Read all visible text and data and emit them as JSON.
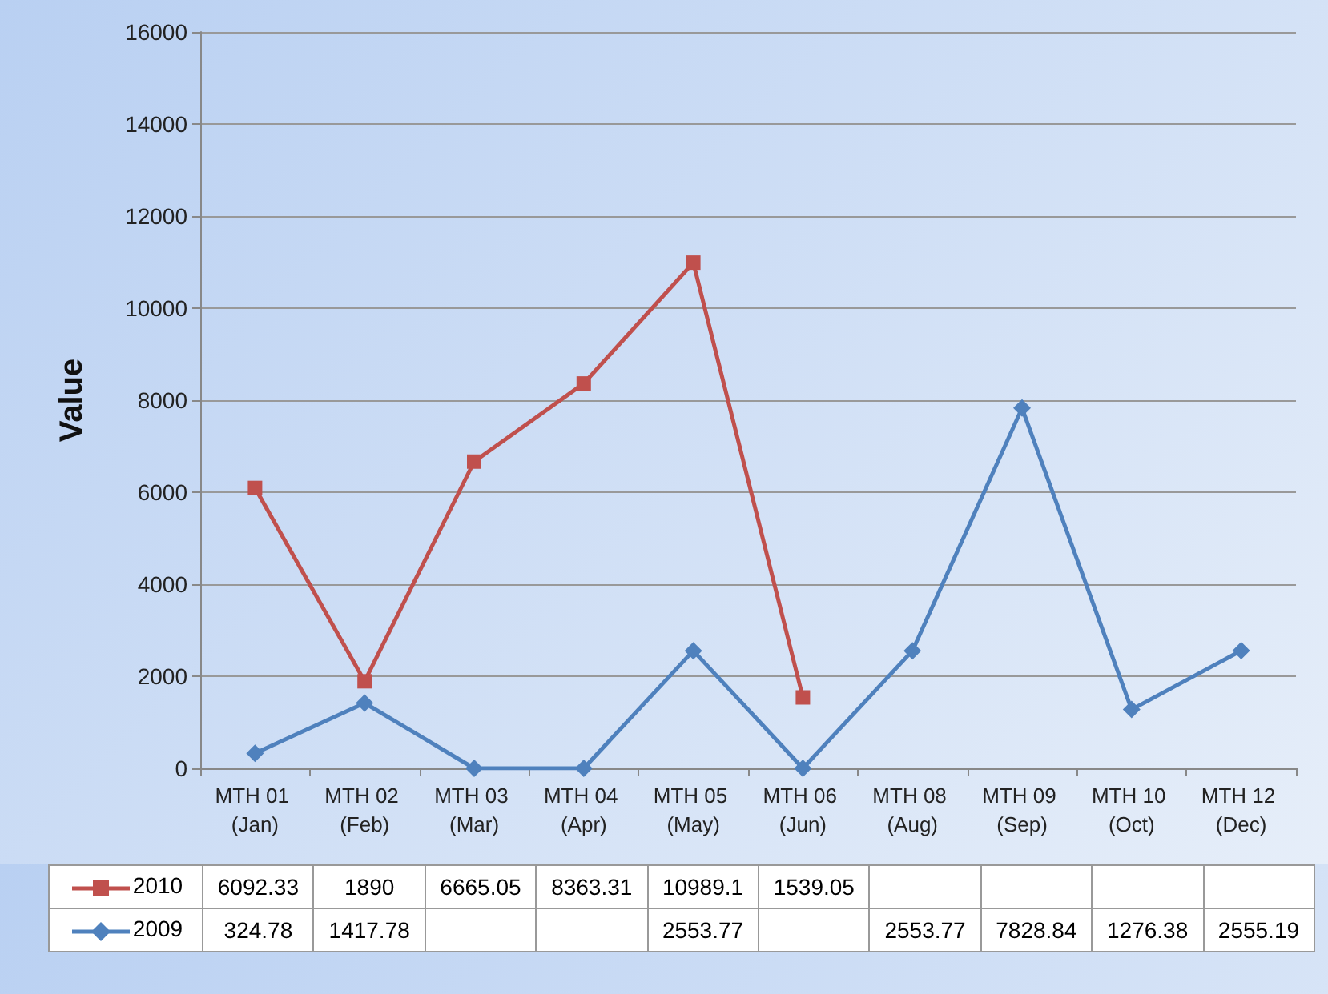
{
  "chart_data": {
    "type": "line",
    "ylabel": "Value",
    "categories": [
      "MTH 01 (Jan)",
      "MTH 02 (Feb)",
      "MTH 03 (Mar)",
      "MTH 04 (Apr)",
      "MTH 05 (May)",
      "MTH 06 (Jun)",
      "MTH 08 (Aug)",
      "MTH 09 (Sep)",
      "MTH 10 (Oct)",
      "MTH 12 (Dec)"
    ],
    "series": [
      {
        "name": "2010",
        "color": "#c0504d",
        "marker": "square",
        "values": [
          6092.33,
          1890,
          6665.05,
          8363.31,
          10989.1,
          1539.05,
          null,
          null,
          null,
          null
        ],
        "value_labels": [
          "6092.33",
          "1890",
          "6665.05",
          "8363.31",
          "10989.1",
          "1539.05",
          null,
          null,
          null,
          null
        ]
      },
      {
        "name": "2009",
        "color": "#4f81bd",
        "marker": "diamond",
        "values": [
          324.78,
          1417.78,
          0,
          0,
          2553.77,
          0,
          2553.77,
          7828.84,
          1276.38,
          2555.19
        ],
        "value_labels": [
          "324.78",
          "1417.78",
          null,
          null,
          "2553.77",
          null,
          "2553.77",
          "7828.84",
          "1276.38",
          "2555.19"
        ]
      }
    ],
    "ylim": [
      0,
      16000
    ],
    "yticks": [
      0,
      2000,
      4000,
      6000,
      8000,
      10000,
      12000,
      14000,
      16000
    ],
    "grid": "y",
    "legend": "bottom"
  }
}
